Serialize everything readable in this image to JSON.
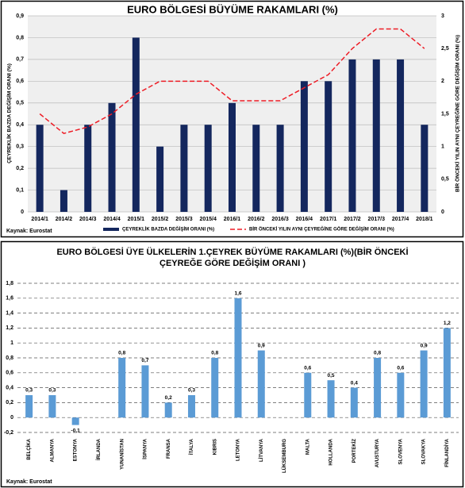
{
  "chart_data": [
    {
      "type": "bar",
      "title": "EURO BÖLGESİ BÜYÜME RAKAMLARI (%)",
      "y_label": "ÇEYREKLİK BAZDA DEĞİŞİM ORANI (%)",
      "y2_label": "BİR ÖNCEKİ YILIN AYNI ÇEYREĞİNE GÖRE DEĞİŞİM ORANI (%)",
      "source": "Kaynak: Eurostat",
      "categories": [
        "2014/1",
        "2014/2",
        "2014/3",
        "2014/4",
        "2015/1",
        "2015/2",
        "2015/3",
        "2015/4",
        "2016/1",
        "2016/2",
        "2016/3",
        "2016/4",
        "2017/1",
        "2017/2",
        "2017/3",
        "2017/4",
        "2018/1"
      ],
      "series": [
        {
          "name": "ÇEYREKLİK BAZDA DEĞİŞİM ORANI (%)",
          "type": "bar",
          "color": "#14275e",
          "values": [
            0.4,
            0.1,
            0.4,
            0.5,
            0.8,
            0.3,
            0.4,
            0.4,
            0.5,
            0.4,
            0.4,
            0.6,
            0.6,
            0.7,
            0.7,
            0.7,
            0.4
          ]
        },
        {
          "name": "BİR ÖNCEKİ YILIN AYNI ÇEYREĞİNE GÖRE DEĞİŞİM ORANI (%)",
          "type": "line",
          "axis": "y2",
          "color": "#ee1c25",
          "values": [
            1.5,
            1.2,
            1.3,
            1.5,
            1.8,
            2.0,
            2.0,
            2.0,
            1.7,
            1.7,
            1.7,
            1.9,
            2.1,
            2.5,
            2.8,
            2.8,
            2.5
          ]
        }
      ],
      "ylim": [
        0,
        0.9
      ],
      "yticks": [
        0,
        {
          "value": 0.1,
          "label": "0,1"
        },
        {
          "value": 0.2,
          "label": "0,2"
        },
        {
          "value": 0.3,
          "label": "0,3"
        },
        {
          "value": 0.4,
          "label": "0,4"
        },
        {
          "value": 0.5,
          "label": "0,5"
        },
        {
          "value": 0.6,
          "label": "0,6"
        },
        {
          "value": 0.7,
          "label": "0,7"
        },
        {
          "value": 0.8,
          "label": "0,8"
        },
        {
          "value": 0.9,
          "label": "0,9"
        }
      ],
      "y2lim": [
        0,
        3
      ],
      "y2ticks": [
        0,
        {
          "value": 0.5,
          "label": "0,5"
        },
        1,
        {
          "value": 1.5,
          "label": "1,5"
        },
        2,
        {
          "value": 2.5,
          "label": "2,5"
        },
        3
      ],
      "grid": true
    },
    {
      "type": "bar",
      "title": [
        "EURO BÖLGESİ ÜYE ÜLKELERİN 1.ÇEYREK BÜYÜME RAKAMLARI (%)(BİR ÖNCEKİ",
        "ÇEYREĞE GÖRE DEĞİŞİM ORANI )"
      ],
      "source": "Kaynak: Eurostat",
      "categories": [
        "BELÇİKA",
        "ALMANYA",
        "ESTONYA",
        "İRLANDA",
        "YUNANİSTAN",
        "İSPANYA",
        "FRANSA",
        "İTALYA",
        "KIBRIS",
        "LETONYA",
        "LİTVANYA",
        "LÜKSEMBURG",
        "MALTA",
        "HOLLANDA",
        "PORTEKİZ",
        "AVUSTURYA",
        "SLOVENYA",
        "SLOVAKYA",
        "FİNLANDİYA"
      ],
      "series": [
        {
          "type": "bar",
          "color": "#5b9bd5",
          "values": [
            0.3,
            0.3,
            -0.1,
            null,
            0.8,
            0.7,
            0.2,
            0.3,
            0.8,
            1.6,
            0.9,
            null,
            0.6,
            0.5,
            0.4,
            0.8,
            0.6,
            0.9,
            1.2
          ],
          "value_labels": [
            "0,3",
            "0,3",
            "-0,1",
            null,
            "0,8",
            "0,7",
            "0,2",
            "0,3",
            "0,8",
            "1,6",
            "0,9",
            null,
            "0,6",
            "0,5",
            "0,4",
            "0,8",
            "0,6",
            "0,9",
            "1,2"
          ]
        }
      ],
      "ylim": [
        -0.2,
        1.8
      ],
      "yticks": [
        {
          "value": -0.2,
          "label": "-0,2"
        },
        0,
        {
          "value": 0.2,
          "label": "0,2"
        },
        {
          "value": 0.4,
          "label": "0,4"
        },
        {
          "value": 0.6,
          "label": "0,6"
        },
        {
          "value": 0.8,
          "label": "0,8"
        },
        1,
        {
          "value": 1.2,
          "label": "1,2"
        },
        {
          "value": 1.4,
          "label": "1,4"
        },
        {
          "value": 1.6,
          "label": "1,6"
        },
        {
          "value": 1.8,
          "label": "1,8"
        }
      ],
      "grid": true
    }
  ]
}
